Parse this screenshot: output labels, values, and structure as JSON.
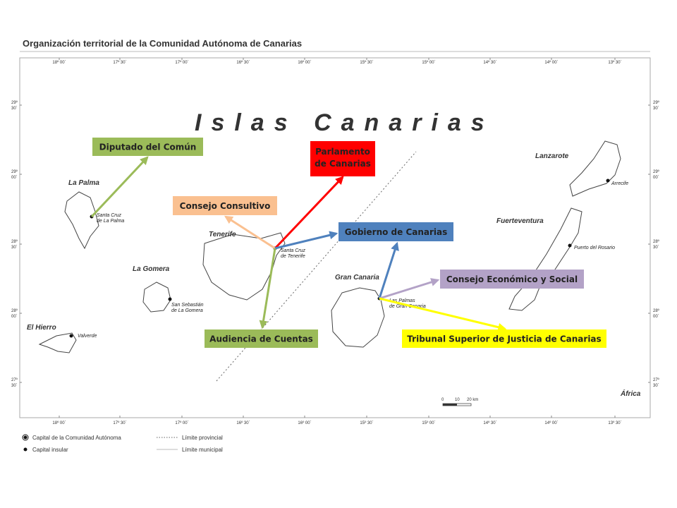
{
  "title": "Organización territorial de la Comunidad Autónoma de Canarias",
  "map_title": "Islas Canarias",
  "longitudes": [
    "18º 00´",
    "17º 30´",
    "17º 00´",
    "16º 30´",
    "16º 00´",
    "15º 30´",
    "15º 00´",
    "14º 30´",
    "14º 00´",
    "13º 30´"
  ],
  "latitudes": [
    {
      "deg": "29º",
      "min": "30´"
    },
    {
      "deg": "29º",
      "min": "00´"
    },
    {
      "deg": "28º",
      "min": "30´"
    },
    {
      "deg": "28º",
      "min": "00´"
    },
    {
      "deg": "27º",
      "min": "30´"
    }
  ],
  "islands": [
    {
      "name": "La Palma",
      "capital": [
        "Santa Cruz",
        "de La Palma"
      ]
    },
    {
      "name": "Tenerife",
      "capital": [
        "Santa Cruz",
        "de Tenerife"
      ]
    },
    {
      "name": "La Gomera",
      "capital": [
        "San Sebastián",
        "de La Gomera"
      ]
    },
    {
      "name": "El Hierro",
      "capital": [
        "Valverde"
      ]
    },
    {
      "name": "Gran Canaria",
      "capital": [
        "Las Palmas",
        "de Gran Canaria"
      ]
    },
    {
      "name": "Fuerteventura",
      "capital": [
        "Puerto del Rosario"
      ]
    },
    {
      "name": "Lanzarote",
      "capital": [
        "Arrecife"
      ]
    }
  ],
  "continent": "África",
  "scale": [
    "0",
    "10",
    "20 km"
  ],
  "institutions": [
    {
      "label": "Diputado del Común",
      "color": "#9bbb59"
    },
    {
      "label": [
        "Parlamento",
        "de Canarias"
      ],
      "color": "#ff0000"
    },
    {
      "label": "Consejo Consultivo",
      "color": "#fac090"
    },
    {
      "label": "Gobierno de Canarias",
      "color": "#4f81bd"
    },
    {
      "label": "Consejo Económico y Social",
      "color": "#b3a2c7"
    },
    {
      "label": "Audiencia de Cuentas",
      "color": "#9bbb59"
    },
    {
      "label": "Tribunal Superior de Justicia de Canarias",
      "color": "#ffff00"
    }
  ],
  "legend": [
    "Capital de la Comunidad Autónoma",
    "Capital insular",
    "Límite provincial",
    "Límite municipal"
  ]
}
